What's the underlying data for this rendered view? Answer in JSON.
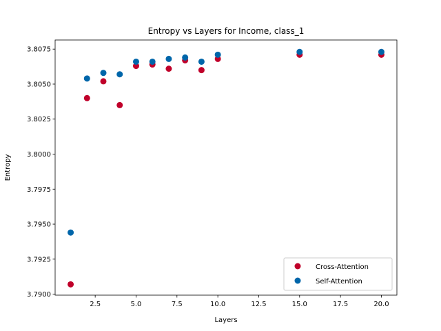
{
  "chart_data": {
    "type": "scatter",
    "title": "Entropy vs Layers for Income, class_1",
    "xlabel": "Layers",
    "ylabel": "Entropy",
    "xlim": [
      0.05,
      20.95
    ],
    "ylim": [
      3.78993,
      3.80815
    ],
    "xticks": [
      2.5,
      5.0,
      7.5,
      10.0,
      12.5,
      15.0,
      17.5,
      20.0
    ],
    "xtick_labels": [
      "2.5",
      "5.0",
      "7.5",
      "10.0",
      "12.5",
      "15.0",
      "17.5",
      "20.0"
    ],
    "yticks": [
      3.79,
      3.7925,
      3.795,
      3.7975,
      3.8,
      3.8025,
      3.805,
      3.8075
    ],
    "ytick_labels": [
      "3.7900",
      "3.7925",
      "3.7950",
      "3.7975",
      "3.8000",
      "3.8025",
      "3.8050",
      "3.8075"
    ],
    "grid": false,
    "legend_position": "lower-right",
    "series": [
      {
        "name": "Cross-Attention",
        "color": "#c0002a",
        "x": [
          1,
          2,
          3,
          4,
          5,
          6,
          7,
          8,
          9,
          10,
          15,
          20
        ],
        "y": [
          3.7907,
          3.804,
          3.8052,
          3.8035,
          3.8063,
          3.8064,
          3.8061,
          3.8067,
          3.806,
          3.8068,
          3.8071,
          3.8071
        ]
      },
      {
        "name": "Self-Attention",
        "color": "#0066aa",
        "x": [
          1,
          2,
          3,
          4,
          5,
          6,
          7,
          8,
          9,
          10,
          15,
          20
        ],
        "y": [
          3.7944,
          3.8054,
          3.8058,
          3.8057,
          3.8066,
          3.8066,
          3.8068,
          3.8069,
          3.8066,
          3.8071,
          3.8073,
          3.8073
        ]
      }
    ]
  }
}
